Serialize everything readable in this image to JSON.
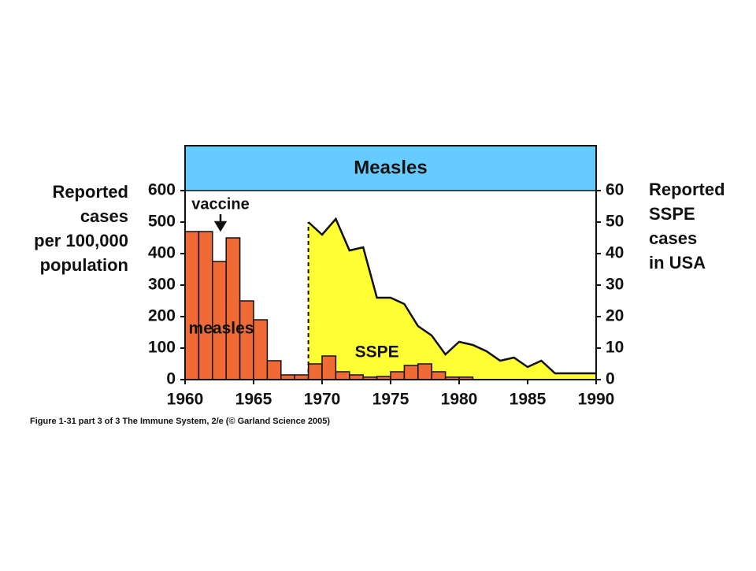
{
  "chart_data": {
    "type": "histogram",
    "title": "Measles",
    "ylabel": [
      "Reported",
      "cases",
      "per 100,000",
      "population"
    ],
    "y2label": [
      "Reported",
      "SSPE",
      "cases",
      "in USA"
    ],
    "annotations": [
      "vaccine"
    ],
    "caption": "Figure 1-31 part 3 of 3  The Immune System, 2/e (© Garland Science 2005)",
    "xlim": [
      1960,
      1990
    ],
    "xticks": [
      1960,
      1965,
      1970,
      1975,
      1980,
      1985,
      1990
    ],
    "ylim": [
      0,
      600
    ],
    "yticks": [
      0,
      100,
      200,
      300,
      400,
      500,
      600
    ],
    "y2lim": [
      0,
      60
    ],
    "y2ticks": [
      0,
      10,
      20,
      30,
      40,
      50,
      60
    ],
    "series": [
      {
        "name": "measles",
        "type": "histogram",
        "color": "#ef6a35",
        "bins": [
          1960,
          1961,
          1962,
          1963,
          1964,
          1965,
          1966,
          1967,
          1968,
          1969,
          1970,
          1971,
          1972,
          1973,
          1974,
          1975,
          1976,
          1977,
          1978,
          1979,
          1980,
          1981
        ],
        "values": [
          470,
          470,
          375,
          450,
          250,
          190,
          60,
          15,
          15,
          50,
          75,
          25,
          15,
          8,
          10,
          25,
          45,
          50,
          25,
          8,
          8
        ]
      },
      {
        "name": "SSPE",
        "type": "area",
        "axis": "y2",
        "color": "#ffff33",
        "x": [
          1969,
          1970,
          1971,
          1972,
          1973,
          1974,
          1975,
          1976,
          1977,
          1978,
          1979,
          1980,
          1981,
          1982,
          1983,
          1984,
          1985,
          1986,
          1987,
          1988,
          1989,
          1990
        ],
        "values": [
          50,
          46,
          51,
          41,
          42,
          26,
          26,
          24,
          17,
          14,
          8,
          12,
          11,
          9,
          6,
          7,
          4,
          6,
          2,
          2,
          2,
          2
        ]
      }
    ]
  }
}
